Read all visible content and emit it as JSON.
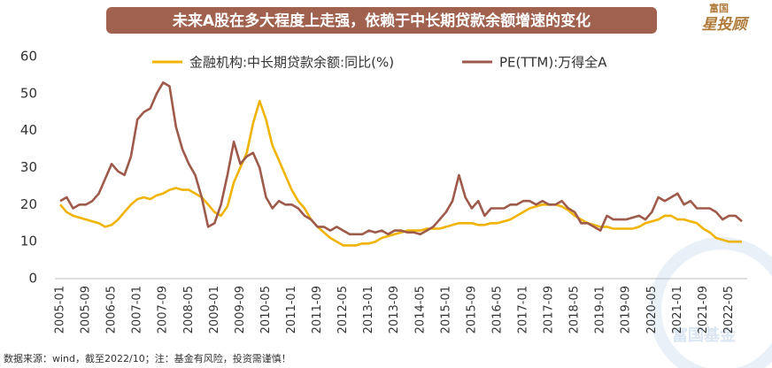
{
  "chart_data": {
    "type": "line",
    "title": "未来A股在多大程度上走强，依赖于中长期贷款余额增速的变化",
    "logo": [
      "富国",
      "星投顾"
    ],
    "watermark": "富国基金",
    "source": "数据来源：wind，截至2022/10；注：基金有风险，投资需谨慎！",
    "categories": [
      "2005-01",
      null,
      null,
      null,
      "2005-09",
      null,
      null,
      null,
      "2006-05",
      null,
      null,
      null,
      "2007-01",
      null,
      null,
      null,
      "2007-09",
      null,
      null,
      null,
      "2008-05",
      null,
      null,
      null,
      "2009-01",
      null,
      null,
      null,
      "2009-09",
      null,
      null,
      null,
      "2010-05",
      null,
      null,
      null,
      "2011-01",
      null,
      null,
      null,
      "2011-09",
      null,
      null,
      null,
      "2012-05",
      null,
      null,
      null,
      "2013-01",
      null,
      null,
      null,
      "2013-09",
      null,
      null,
      null,
      "2014-05",
      null,
      null,
      null,
      "2015-01",
      null,
      null,
      null,
      "2015-09",
      null,
      null,
      null,
      "2016-05",
      null,
      null,
      null,
      "2017-01",
      null,
      null,
      null,
      "2017-09",
      null,
      null,
      null,
      "2018-05",
      null,
      null,
      null,
      "2019-01",
      null,
      null,
      null,
      "2019-09",
      null,
      null,
      null,
      "2020-05",
      null,
      null,
      null,
      "2021-01",
      null,
      null,
      null,
      "2021-09",
      null,
      null,
      null,
      "2022-05",
      null,
      null
    ],
    "series": [
      {
        "name": "金融机构:中长期贷款余额:同比(%)",
        "color": "#f0b400",
        "values": [
          20,
          18,
          17,
          16.5,
          16,
          15.5,
          15,
          14,
          14.5,
          16,
          18,
          20,
          21.5,
          22,
          21.5,
          22.5,
          23,
          24,
          24.5,
          24,
          24,
          23,
          22,
          20,
          18,
          17,
          19.5,
          26,
          30,
          34,
          42,
          48,
          43,
          36,
          32,
          28,
          24,
          21,
          19,
          16,
          14,
          12.5,
          11,
          10,
          9,
          9,
          9,
          9.5,
          9.5,
          10,
          11,
          11.5,
          12,
          12.5,
          13,
          13,
          13,
          13.5,
          13.5,
          13.5,
          14,
          14.5,
          15,
          15,
          15,
          14.5,
          14.5,
          15,
          15,
          15.5,
          16,
          17,
          18,
          19,
          19.5,
          20,
          20,
          20,
          19.5,
          18.5,
          17,
          16,
          15,
          14.5,
          14,
          14,
          13.5,
          13.5,
          13.5,
          13.5,
          14,
          15,
          15.5,
          16,
          17,
          17,
          16,
          16,
          15.5,
          15,
          13.5,
          12.5,
          11,
          10.5,
          10,
          10,
          10
        ]
      },
      {
        "name": "PE(TTM):万得全A",
        "color": "#9e5a4a",
        "values": [
          21,
          22,
          19,
          20,
          20,
          21,
          23,
          27,
          31,
          29,
          28,
          33,
          43,
          45,
          46,
          50,
          53,
          52,
          41,
          35,
          31,
          28,
          22,
          14,
          15,
          20,
          28,
          37,
          31,
          33,
          34,
          30,
          22,
          19,
          21,
          20,
          20,
          19,
          17,
          16,
          14,
          14,
          13,
          14,
          13,
          12,
          12,
          12,
          13,
          12.5,
          13,
          12,
          13,
          13,
          12.5,
          12.5,
          12,
          13,
          14,
          16,
          18,
          21,
          28,
          22,
          19,
          21,
          17,
          19,
          19,
          19,
          20,
          20,
          21,
          21,
          20,
          21,
          20,
          20,
          21,
          19,
          18,
          15,
          15,
          14,
          13,
          17,
          16,
          16,
          16,
          16.5,
          17,
          16,
          18,
          22,
          21,
          22,
          23,
          20,
          21,
          19,
          19,
          19,
          18,
          16,
          17,
          17,
          15.5
        ]
      }
    ],
    "ylim": [
      0,
      60
    ],
    "yticks": [
      0,
      10,
      20,
      30,
      40,
      50,
      60
    ]
  }
}
